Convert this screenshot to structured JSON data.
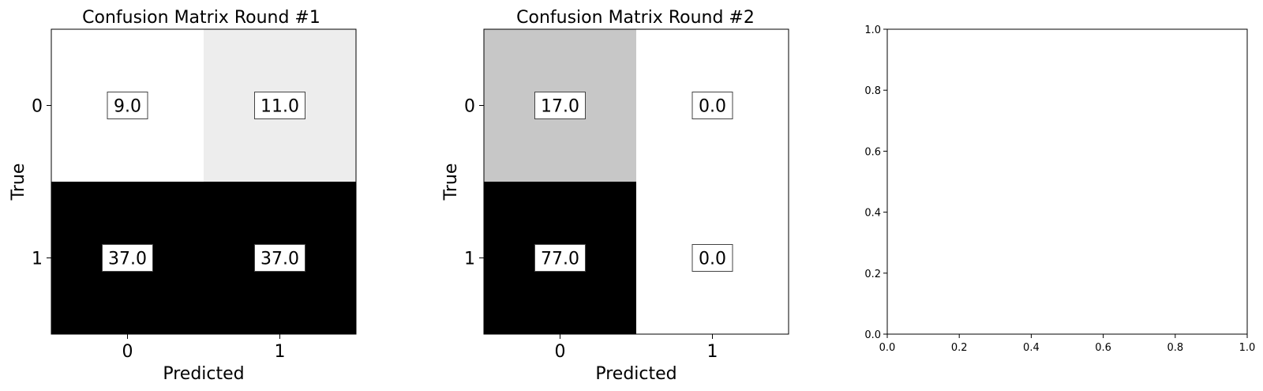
{
  "chart_data": [
    {
      "type": "heatmap",
      "title": "Confusion Matrix Round #1",
      "xlabel": "Predicted",
      "ylabel": "True",
      "x_categories": [
        "0",
        "1"
      ],
      "y_categories": [
        "0",
        "1"
      ],
      "values": [
        [
          9.0,
          11.0
        ],
        [
          37.0,
          37.0
        ]
      ],
      "value_labels": [
        [
          "9.0",
          "11.0"
        ],
        [
          "37.0",
          "37.0"
        ]
      ],
      "colormap": "Greys",
      "grid": false
    },
    {
      "type": "heatmap",
      "title": "Confusion Matrix Round #2",
      "xlabel": "Predicted",
      "ylabel": "True",
      "x_categories": [
        "0",
        "1"
      ],
      "y_categories": [
        "0",
        "1"
      ],
      "values": [
        [
          17.0,
          0.0
        ],
        [
          77.0,
          0.0
        ]
      ],
      "value_labels": [
        [
          "17.0",
          "0.0"
        ],
        [
          "77.0",
          "0.0"
        ]
      ],
      "colormap": "Greys",
      "grid": false
    },
    {
      "type": "scatter",
      "title": "",
      "xlabel": "",
      "ylabel": "",
      "series": [],
      "xlim": [
        0.0,
        1.0
      ],
      "ylim": [
        0.0,
        1.0
      ],
      "xticks": [
        "0.0",
        "0.2",
        "0.4",
        "0.6",
        "0.8",
        "1.0"
      ],
      "yticks": [
        "0.0",
        "0.2",
        "0.4",
        "0.6",
        "0.8",
        "1.0"
      ],
      "grid": false
    }
  ]
}
